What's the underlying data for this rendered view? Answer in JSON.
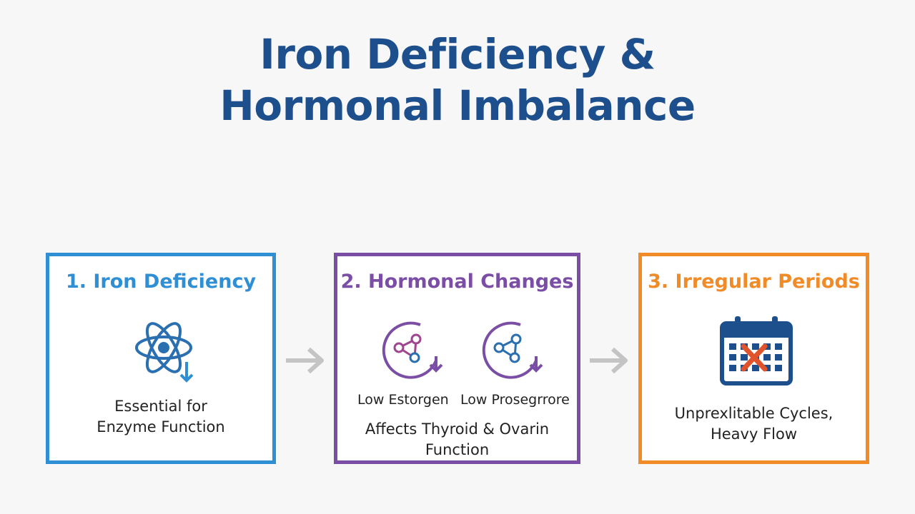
{
  "title": {
    "line1": "Iron Deficiency &",
    "line2": "Hormonal Imbalance"
  },
  "steps": [
    {
      "heading": "1. Iron Deficiency",
      "icon": "atom-down-arrow-icon",
      "text_lines": [
        "Essential for",
        "Enzyme Function"
      ],
      "color": "#2f8fd4"
    },
    {
      "heading": "2. Hormonal Changes",
      "icons": [
        "molecule-cycle-icon",
        "molecule-cycle-icon"
      ],
      "labels": [
        "Low Estorgen",
        "Low Prosegrrore"
      ],
      "text_lines": [
        "Affects Thyroid & Ovarin",
        "Function"
      ],
      "color": "#7b4ea6"
    },
    {
      "heading": "3. Irregular Periods",
      "icon": "calendar-cross-icon",
      "text_lines": [
        "Unprexlitable Cycles,",
        "Heavy Flow"
      ],
      "color": "#f08b28"
    }
  ],
  "arrows": [
    "right-arrow-icon",
    "right-arrow-icon"
  ]
}
